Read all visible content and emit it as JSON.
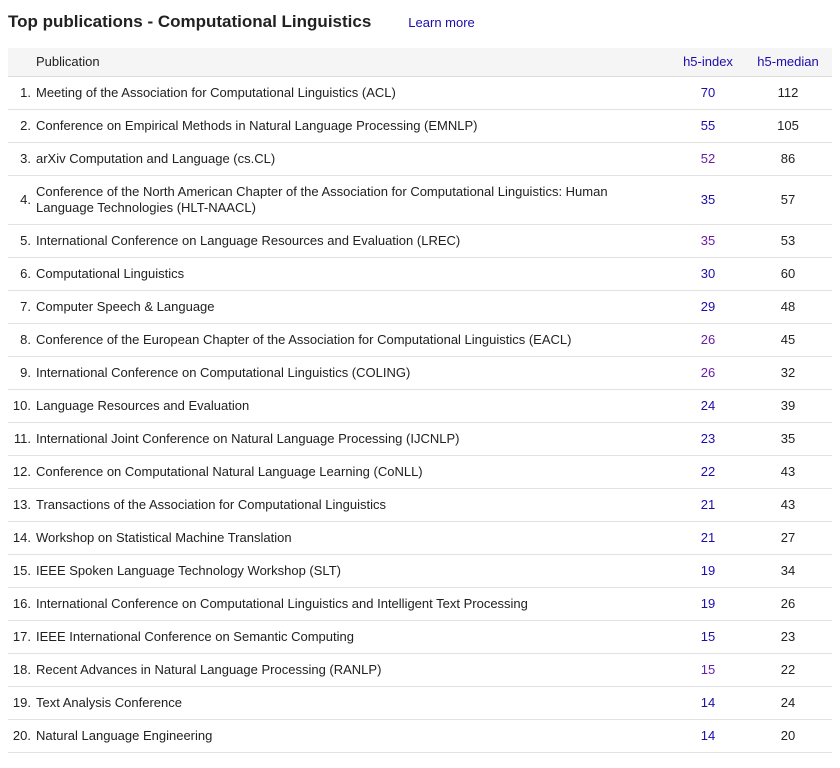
{
  "page": {
    "title": "Top publications - Computational Linguistics",
    "learn_more_label": "Learn more"
  },
  "table": {
    "columns": {
      "publication": "Publication",
      "h5_index": "h5-index",
      "h5_median": "h5-median"
    },
    "rows": [
      {
        "rank": "1.",
        "publication": "Meeting of the Association for Computational Linguistics (ACL)",
        "h5_index": "70",
        "h5_median": "112",
        "visited": false
      },
      {
        "rank": "2.",
        "publication": "Conference on Empirical Methods in Natural Language Processing (EMNLP)",
        "h5_index": "55",
        "h5_median": "105",
        "visited": false
      },
      {
        "rank": "3.",
        "publication": "arXiv Computation and Language (cs.CL)",
        "h5_index": "52",
        "h5_median": "86",
        "visited": true
      },
      {
        "rank": "4.",
        "publication": "Conference of the North American Chapter of the Association for Computational Linguistics: Human Language Technologies (HLT-NAACL)",
        "h5_index": "35",
        "h5_median": "57",
        "visited": false
      },
      {
        "rank": "5.",
        "publication": "International Conference on Language Resources and Evaluation (LREC)",
        "h5_index": "35",
        "h5_median": "53",
        "visited": true
      },
      {
        "rank": "6.",
        "publication": "Computational Linguistics",
        "h5_index": "30",
        "h5_median": "60",
        "visited": false
      },
      {
        "rank": "7.",
        "publication": "Computer Speech & Language",
        "h5_index": "29",
        "h5_median": "48",
        "visited": false
      },
      {
        "rank": "8.",
        "publication": "Conference of the European Chapter of the Association for Computational Linguistics (EACL)",
        "h5_index": "26",
        "h5_median": "45",
        "visited": true
      },
      {
        "rank": "9.",
        "publication": "International Conference on Computational Linguistics (COLING)",
        "h5_index": "26",
        "h5_median": "32",
        "visited": true
      },
      {
        "rank": "10.",
        "publication": "Language Resources and Evaluation",
        "h5_index": "24",
        "h5_median": "39",
        "visited": false
      },
      {
        "rank": "11.",
        "publication": "International Joint Conference on Natural Language Processing (IJCNLP)",
        "h5_index": "23",
        "h5_median": "35",
        "visited": false
      },
      {
        "rank": "12.",
        "publication": "Conference on Computational Natural Language Learning (CoNLL)",
        "h5_index": "22",
        "h5_median": "43",
        "visited": false
      },
      {
        "rank": "13.",
        "publication": "Transactions of the Association for Computational Linguistics",
        "h5_index": "21",
        "h5_median": "43",
        "visited": false
      },
      {
        "rank": "14.",
        "publication": "Workshop on Statistical Machine Translation",
        "h5_index": "21",
        "h5_median": "27",
        "visited": false
      },
      {
        "rank": "15.",
        "publication": "IEEE Spoken Language Technology Workshop (SLT)",
        "h5_index": "19",
        "h5_median": "34",
        "visited": false
      },
      {
        "rank": "16.",
        "publication": "International Conference on Computational Linguistics and Intelligent Text Processing",
        "h5_index": "19",
        "h5_median": "26",
        "visited": false
      },
      {
        "rank": "17.",
        "publication": "IEEE International Conference on Semantic Computing",
        "h5_index": "15",
        "h5_median": "23",
        "visited": false
      },
      {
        "rank": "18.",
        "publication": "Recent Advances in Natural Language Processing (RANLP)",
        "h5_index": "15",
        "h5_median": "22",
        "visited": true
      },
      {
        "rank": "19.",
        "publication": "Text Analysis Conference",
        "h5_index": "14",
        "h5_median": "24",
        "visited": false
      },
      {
        "rank": "20.",
        "publication": "Natural Language Engineering",
        "h5_index": "14",
        "h5_median": "20",
        "visited": false
      }
    ]
  },
  "colors": {
    "link_blue": "#1a0dab",
    "link_visited_purple": "#681da8",
    "text": "#212121",
    "header_background": "#f5f5f5",
    "row_border": "#e2e2e2"
  }
}
